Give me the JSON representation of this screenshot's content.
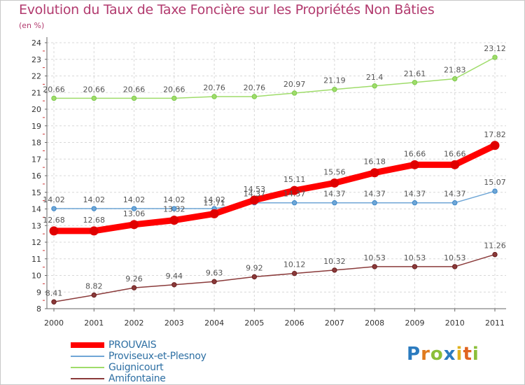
{
  "title": "Evolution du Taux de Taxe Foncière sur les Propriétés Non Bâties",
  "unit": "(en %)",
  "logo_text": "Proxiti",
  "colors": {
    "title": "#b23a6e",
    "grid": "#d8d8d8",
    "legend_text": "#2d6fa3",
    "logo": [
      "#2b7bbf",
      "#e07b1f",
      "#8bbf3a",
      "#2b7bbf",
      "#e0b21f",
      "#e0631f",
      "#8bbf3a"
    ]
  },
  "chart_data": {
    "type": "line",
    "title": "Evolution du Taux de Taxe Foncière sur les Propriétés Non Bâties",
    "ylabel": "(en %)",
    "xlabel": "",
    "x": [
      "2000",
      "2001",
      "2002",
      "2003",
      "2004",
      "2005",
      "2006",
      "2007",
      "2008",
      "2009",
      "2010",
      "2011"
    ],
    "ylim": [
      8,
      24
    ],
    "yticks": [
      8,
      9,
      10,
      11,
      12,
      13,
      14,
      15,
      16,
      17,
      18,
      19,
      20,
      21,
      22,
      23,
      24
    ],
    "grid": true,
    "legend_position": "bottom-left",
    "series": [
      {
        "name": "PROUVAIS",
        "color": "#ff0000",
        "marker_color": "#e00000",
        "emphasis": "thick",
        "values": [
          12.68,
          12.68,
          13.06,
          13.32,
          13.71,
          14.53,
          15.11,
          15.56,
          16.18,
          16.66,
          16.66,
          17.82
        ],
        "labels": [
          "12.68",
          "12.68",
          "13.06",
          "13.32",
          "13.71",
          "14.53",
          "15.11",
          "15.56",
          "16.18",
          "16.66",
          "16.66",
          "17.82"
        ]
      },
      {
        "name": "Proviseux-et-Plesnoy",
        "color": "#6fa6d6",
        "marker_color": "#3a86c8",
        "emphasis": "normal",
        "values": [
          14.02,
          14.02,
          14.02,
          14.02,
          14.02,
          14.37,
          14.37,
          14.37,
          14.37,
          14.37,
          14.37,
          15.07
        ],
        "labels": [
          "14.02",
          "14.02",
          "14.02",
          "14.02",
          "14.02",
          "14.37",
          "14.37",
          "14.37",
          "14.37",
          "14.37",
          "14.37",
          "15.07"
        ]
      },
      {
        "name": "Guignicourt",
        "color": "#9fdc6a",
        "marker_color": "#7cc94a",
        "emphasis": "normal",
        "values": [
          20.66,
          20.66,
          20.66,
          20.66,
          20.76,
          20.76,
          20.97,
          21.19,
          21.4,
          21.61,
          21.83,
          23.12
        ],
        "labels": [
          "20.66",
          "20.66",
          "20.66",
          "20.66",
          "20.76",
          "20.76",
          "20.97",
          "21.19",
          "21.4",
          "21.61",
          "21.83",
          "23.12"
        ]
      },
      {
        "name": "Amifontaine",
        "color": "#8a3a3a",
        "marker_color": "#6b1f1f",
        "emphasis": "normal",
        "values": [
          8.41,
          8.82,
          9.26,
          9.44,
          9.63,
          9.92,
          10.12,
          10.32,
          10.53,
          10.53,
          10.53,
          11.26
        ],
        "labels": [
          "8.41",
          "8.82",
          "9.26",
          "9.44",
          "9.63",
          "9.92",
          "10.12",
          "10.32",
          "10.53",
          "10.53",
          "10.53",
          "11.26"
        ]
      }
    ]
  }
}
